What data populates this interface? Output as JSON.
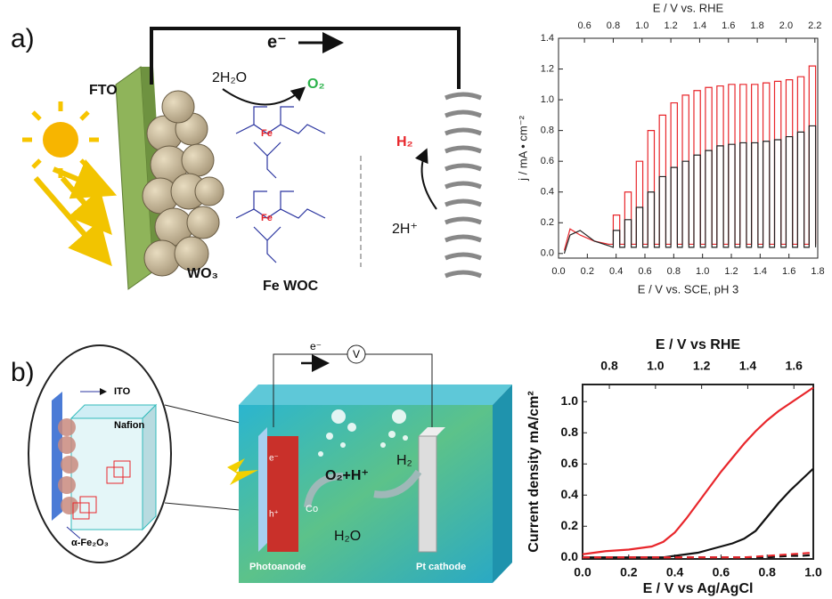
{
  "panel_labels": [
    "a)",
    "b)"
  ],
  "diagram_a": {
    "fto": "FTO",
    "electron": "e⁻",
    "water": "2H₂O",
    "oxygen": "O₂",
    "hydrogen": "H₂",
    "protons": "2H⁺",
    "wo3": "WO₃",
    "catalyst": "Fe WOC",
    "metal": [
      "Fe",
      "Fe"
    ]
  },
  "diagram_b": {
    "ito": "ITO",
    "nafion": "Nafion",
    "hematite": "α-Fe₂O₃",
    "electron": "e⁻",
    "voltmeter": "V",
    "photoanode": "Photoanode",
    "cathode": "Pt cathode",
    "products": "O₂+H⁺",
    "hydrogen": "H₂",
    "water": "H₂O",
    "cobalt": "Co",
    "hole": "h⁺",
    "electron_anode": "e⁻"
  },
  "chart_data": [
    {
      "type": "line",
      "xlabel": "E / V vs. SCE, pH 3",
      "x2label": "E / V vs. RHE",
      "ylabel": "j / mA • cm⁻²",
      "xlim": [
        0,
        1.8
      ],
      "x2lim": [
        0.42,
        2.22
      ],
      "ylim": [
        -0.03,
        1.4
      ],
      "xticks": [
        {
          "value": 0,
          "label": "0.0"
        },
        0.2,
        0.4,
        0.6,
        0.8,
        {
          "value": 1,
          "label": "1.0"
        },
        1.2,
        1.4,
        1.6,
        1.8
      ],
      "x2ticks": [
        0.6,
        0.8,
        {
          "value": 1,
          "label": "1.0"
        },
        1.2,
        1.4,
        1.6,
        1.8,
        {
          "value": 2,
          "label": "2.0"
        },
        2.2
      ],
      "yticks": [
        {
          "value": 0,
          "label": "0.0"
        },
        0.2,
        0.4,
        0.6,
        0.8,
        {
          "value": 1,
          "label": "1.0"
        },
        1.2,
        1.4
      ],
      "grid": false,
      "x": [
        0.04,
        0.08,
        0.15,
        0.25,
        0.35,
        0.38,
        0.38,
        0.425,
        0.425,
        0.46,
        0.46,
        0.505,
        0.505,
        0.54,
        0.54,
        0.585,
        0.585,
        0.62,
        0.62,
        0.665,
        0.665,
        0.7,
        0.7,
        0.745,
        0.745,
        0.78,
        0.78,
        0.825,
        0.825,
        0.86,
        0.86,
        0.905,
        0.905,
        0.94,
        0.94,
        0.985,
        0.985,
        1.02,
        1.02,
        1.065,
        1.065,
        1.1,
        1.1,
        1.145,
        1.145,
        1.18,
        1.18,
        1.225,
        1.225,
        1.26,
        1.26,
        1.305,
        1.305,
        1.34,
        1.34,
        1.385,
        1.385,
        1.42,
        1.42,
        1.465,
        1.465,
        1.5,
        1.5,
        1.545,
        1.545,
        1.58,
        1.58,
        1.625,
        1.625,
        1.66,
        1.66,
        1.705,
        1.705,
        1.74,
        1.74,
        1.785,
        1.785
      ],
      "series": [
        {
          "color": "#e8262b",
          "values": [
            0.02,
            0.16,
            0.12,
            0.08,
            0.06,
            0.06,
            0.25,
            0.25,
            0.06,
            0.06,
            0.4,
            0.4,
            0.06,
            0.06,
            0.6,
            0.6,
            0.06,
            0.06,
            0.8,
            0.8,
            0.06,
            0.06,
            0.9,
            0.9,
            0.06,
            0.06,
            0.98,
            0.98,
            0.06,
            0.06,
            1.03,
            1.03,
            0.06,
            0.06,
            1.06,
            1.06,
            0.06,
            0.06,
            1.08,
            1.08,
            0.06,
            0.06,
            1.09,
            1.09,
            0.06,
            0.06,
            1.1,
            1.1,
            0.06,
            0.06,
            1.1,
            1.1,
            0.06,
            0.06,
            1.1,
            1.1,
            0.06,
            0.06,
            1.11,
            1.11,
            0.06,
            0.06,
            1.12,
            1.12,
            0.06,
            0.06,
            1.13,
            1.13,
            0.06,
            0.06,
            1.15,
            1.15,
            0.06,
            0.06,
            1.22,
            1.22,
            0.06
          ]
        },
        {
          "color": "#222222",
          "values": [
            0.0,
            0.12,
            0.15,
            0.08,
            0.05,
            0.04,
            0.15,
            0.15,
            0.04,
            0.04,
            0.22,
            0.22,
            0.04,
            0.04,
            0.3,
            0.3,
            0.04,
            0.04,
            0.4,
            0.4,
            0.04,
            0.04,
            0.5,
            0.5,
            0.04,
            0.04,
            0.56,
            0.56,
            0.04,
            0.04,
            0.6,
            0.6,
            0.04,
            0.04,
            0.64,
            0.64,
            0.04,
            0.04,
            0.67,
            0.67,
            0.04,
            0.04,
            0.7,
            0.7,
            0.04,
            0.04,
            0.71,
            0.71,
            0.04,
            0.04,
            0.72,
            0.72,
            0.04,
            0.04,
            0.72,
            0.72,
            0.04,
            0.04,
            0.73,
            0.73,
            0.04,
            0.04,
            0.74,
            0.74,
            0.04,
            0.04,
            0.76,
            0.76,
            0.04,
            0.04,
            0.79,
            0.79,
            0.04,
            0.04,
            0.83,
            0.83,
            0.04
          ]
        }
      ]
    },
    {
      "type": "line",
      "bold": true,
      "xlabel": "E / V vs Ag/AgCl",
      "x2label": "E / V vs RHE",
      "ylabel": "Current density mA/cm²",
      "xlim": [
        0,
        1
      ],
      "x2lim": [
        0.684,
        1.684
      ],
      "ylim": [
        -0.01,
        1.11
      ],
      "xticks": [
        {
          "value": 0,
          "label": "0.0"
        },
        0.2,
        0.4,
        0.6,
        0.8,
        {
          "value": 1,
          "label": "1.0"
        }
      ],
      "x2ticks": [
        0.8,
        {
          "value": 1,
          "label": "1.0"
        },
        1.2,
        1.4,
        1.6
      ],
      "yticks": [
        {
          "value": 0,
          "label": "0.0"
        },
        0.2,
        0.4,
        0.6,
        0.8,
        {
          "value": 1,
          "label": "1.0"
        }
      ],
      "grid": false,
      "x": [
        0,
        0.1,
        0.2,
        0.3,
        0.35,
        0.4,
        0.45,
        0.5,
        0.55,
        0.6,
        0.65,
        0.7,
        0.75,
        0.8,
        0.85,
        0.9,
        0.95,
        1.0
      ],
      "series": [
        {
          "color": "#e8262b",
          "values": [
            0.02,
            0.04,
            0.05,
            0.07,
            0.1,
            0.16,
            0.25,
            0.35,
            0.45,
            0.55,
            0.64,
            0.73,
            0.81,
            0.88,
            0.94,
            0.99,
            1.04,
            1.09
          ]
        },
        {
          "color": "#111111",
          "values": [
            0,
            0,
            0,
            0,
            0,
            0.01,
            0.02,
            0.03,
            0.05,
            0.07,
            0.09,
            0.12,
            0.17,
            0.26,
            0.35,
            0.43,
            0.5,
            0.57
          ]
        },
        {
          "color": "#111111",
          "dash": true,
          "values": [
            0,
            0,
            0,
            0,
            0,
            0,
            0,
            0,
            0,
            0,
            0,
            0,
            0,
            0,
            0.005,
            0.01,
            0.01,
            0.015
          ]
        },
        {
          "color": "#e8262b",
          "dash": true,
          "values": [
            0,
            0,
            0,
            0,
            0,
            0,
            0,
            0,
            0,
            0,
            0,
            0,
            0.005,
            0.01,
            0.015,
            0.02,
            0.025,
            0.03
          ]
        }
      ]
    }
  ]
}
